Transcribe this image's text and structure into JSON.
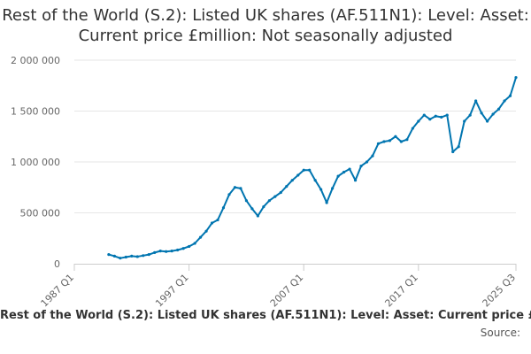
{
  "chart_data": {
    "type": "line",
    "title": "Rest of the World (S.2): Listed UK shares (AF.511N1): Level: Asset: Current price £million: Not seasonally adjusted",
    "xlabel": "",
    "ylabel": "",
    "x_tick_labels": [
      "1987 Q1",
      "1997 Q1",
      "2007 Q1",
      "2017 Q1",
      "2025 Q3"
    ],
    "x_range": [
      "1987 Q1",
      "2025 Q3"
    ],
    "y_tick_values": [
      0,
      500000,
      1000000,
      1500000,
      2000000
    ],
    "y_tick_labels": [
      "0",
      "500 000",
      "1 000 000",
      "1 500 000",
      "2 000 000"
    ],
    "ylim": [
      0,
      2000000
    ],
    "grid": true,
    "series": [
      {
        "name": "Rest of the World (S.2): Listed UK shares (AF.511N1): Level: Asset: Current price £million: Not seasonally adjusted",
        "color": "#0075b0",
        "x": [
          "1990 Q1",
          "1990 Q3",
          "1991 Q1",
          "1991 Q3",
          "1992 Q1",
          "1992 Q3",
          "1993 Q1",
          "1993 Q3",
          "1994 Q1",
          "1994 Q3",
          "1995 Q1",
          "1995 Q3",
          "1996 Q1",
          "1996 Q3",
          "1997 Q1",
          "1997 Q3",
          "1998 Q1",
          "1998 Q3",
          "1999 Q1",
          "1999 Q3",
          "2000 Q1",
          "2000 Q3",
          "2001 Q1",
          "2001 Q3",
          "2002 Q1",
          "2002 Q3",
          "2003 Q1",
          "2003 Q3",
          "2004 Q1",
          "2004 Q3",
          "2005 Q1",
          "2005 Q3",
          "2006 Q1",
          "2006 Q3",
          "2007 Q1",
          "2007 Q3",
          "2008 Q1",
          "2008 Q3",
          "2009 Q1",
          "2009 Q3",
          "2010 Q1",
          "2010 Q3",
          "2011 Q1",
          "2011 Q3",
          "2012 Q1",
          "2012 Q3",
          "2013 Q1",
          "2013 Q3",
          "2014 Q1",
          "2014 Q3",
          "2015 Q1",
          "2015 Q3",
          "2016 Q1",
          "2016 Q3",
          "2017 Q1",
          "2017 Q3",
          "2018 Q1",
          "2018 Q3",
          "2019 Q1",
          "2019 Q3",
          "2020 Q1",
          "2020 Q3",
          "2021 Q1",
          "2021 Q3",
          "2022 Q1",
          "2022 Q3",
          "2023 Q1",
          "2023 Q3",
          "2024 Q1",
          "2024 Q3",
          "2025 Q1",
          "2025 Q3"
        ],
        "values": [
          90000,
          75000,
          55000,
          65000,
          75000,
          70000,
          80000,
          90000,
          110000,
          125000,
          120000,
          125000,
          135000,
          150000,
          170000,
          200000,
          260000,
          320000,
          400000,
          430000,
          550000,
          680000,
          750000,
          740000,
          620000,
          540000,
          470000,
          560000,
          620000,
          660000,
          700000,
          760000,
          820000,
          870000,
          920000,
          920000,
          820000,
          730000,
          600000,
          740000,
          860000,
          900000,
          930000,
          820000,
          960000,
          1000000,
          1060000,
          1180000,
          1200000,
          1210000,
          1250000,
          1200000,
          1220000,
          1330000,
          1400000,
          1460000,
          1420000,
          1450000,
          1440000,
          1460000,
          1100000,
          1150000,
          1400000,
          1460000,
          1600000,
          1480000,
          1400000,
          1470000,
          1520000,
          1600000,
          1650000,
          1830000
        ]
      }
    ]
  },
  "footer": {
    "source_label": "Source:"
  }
}
